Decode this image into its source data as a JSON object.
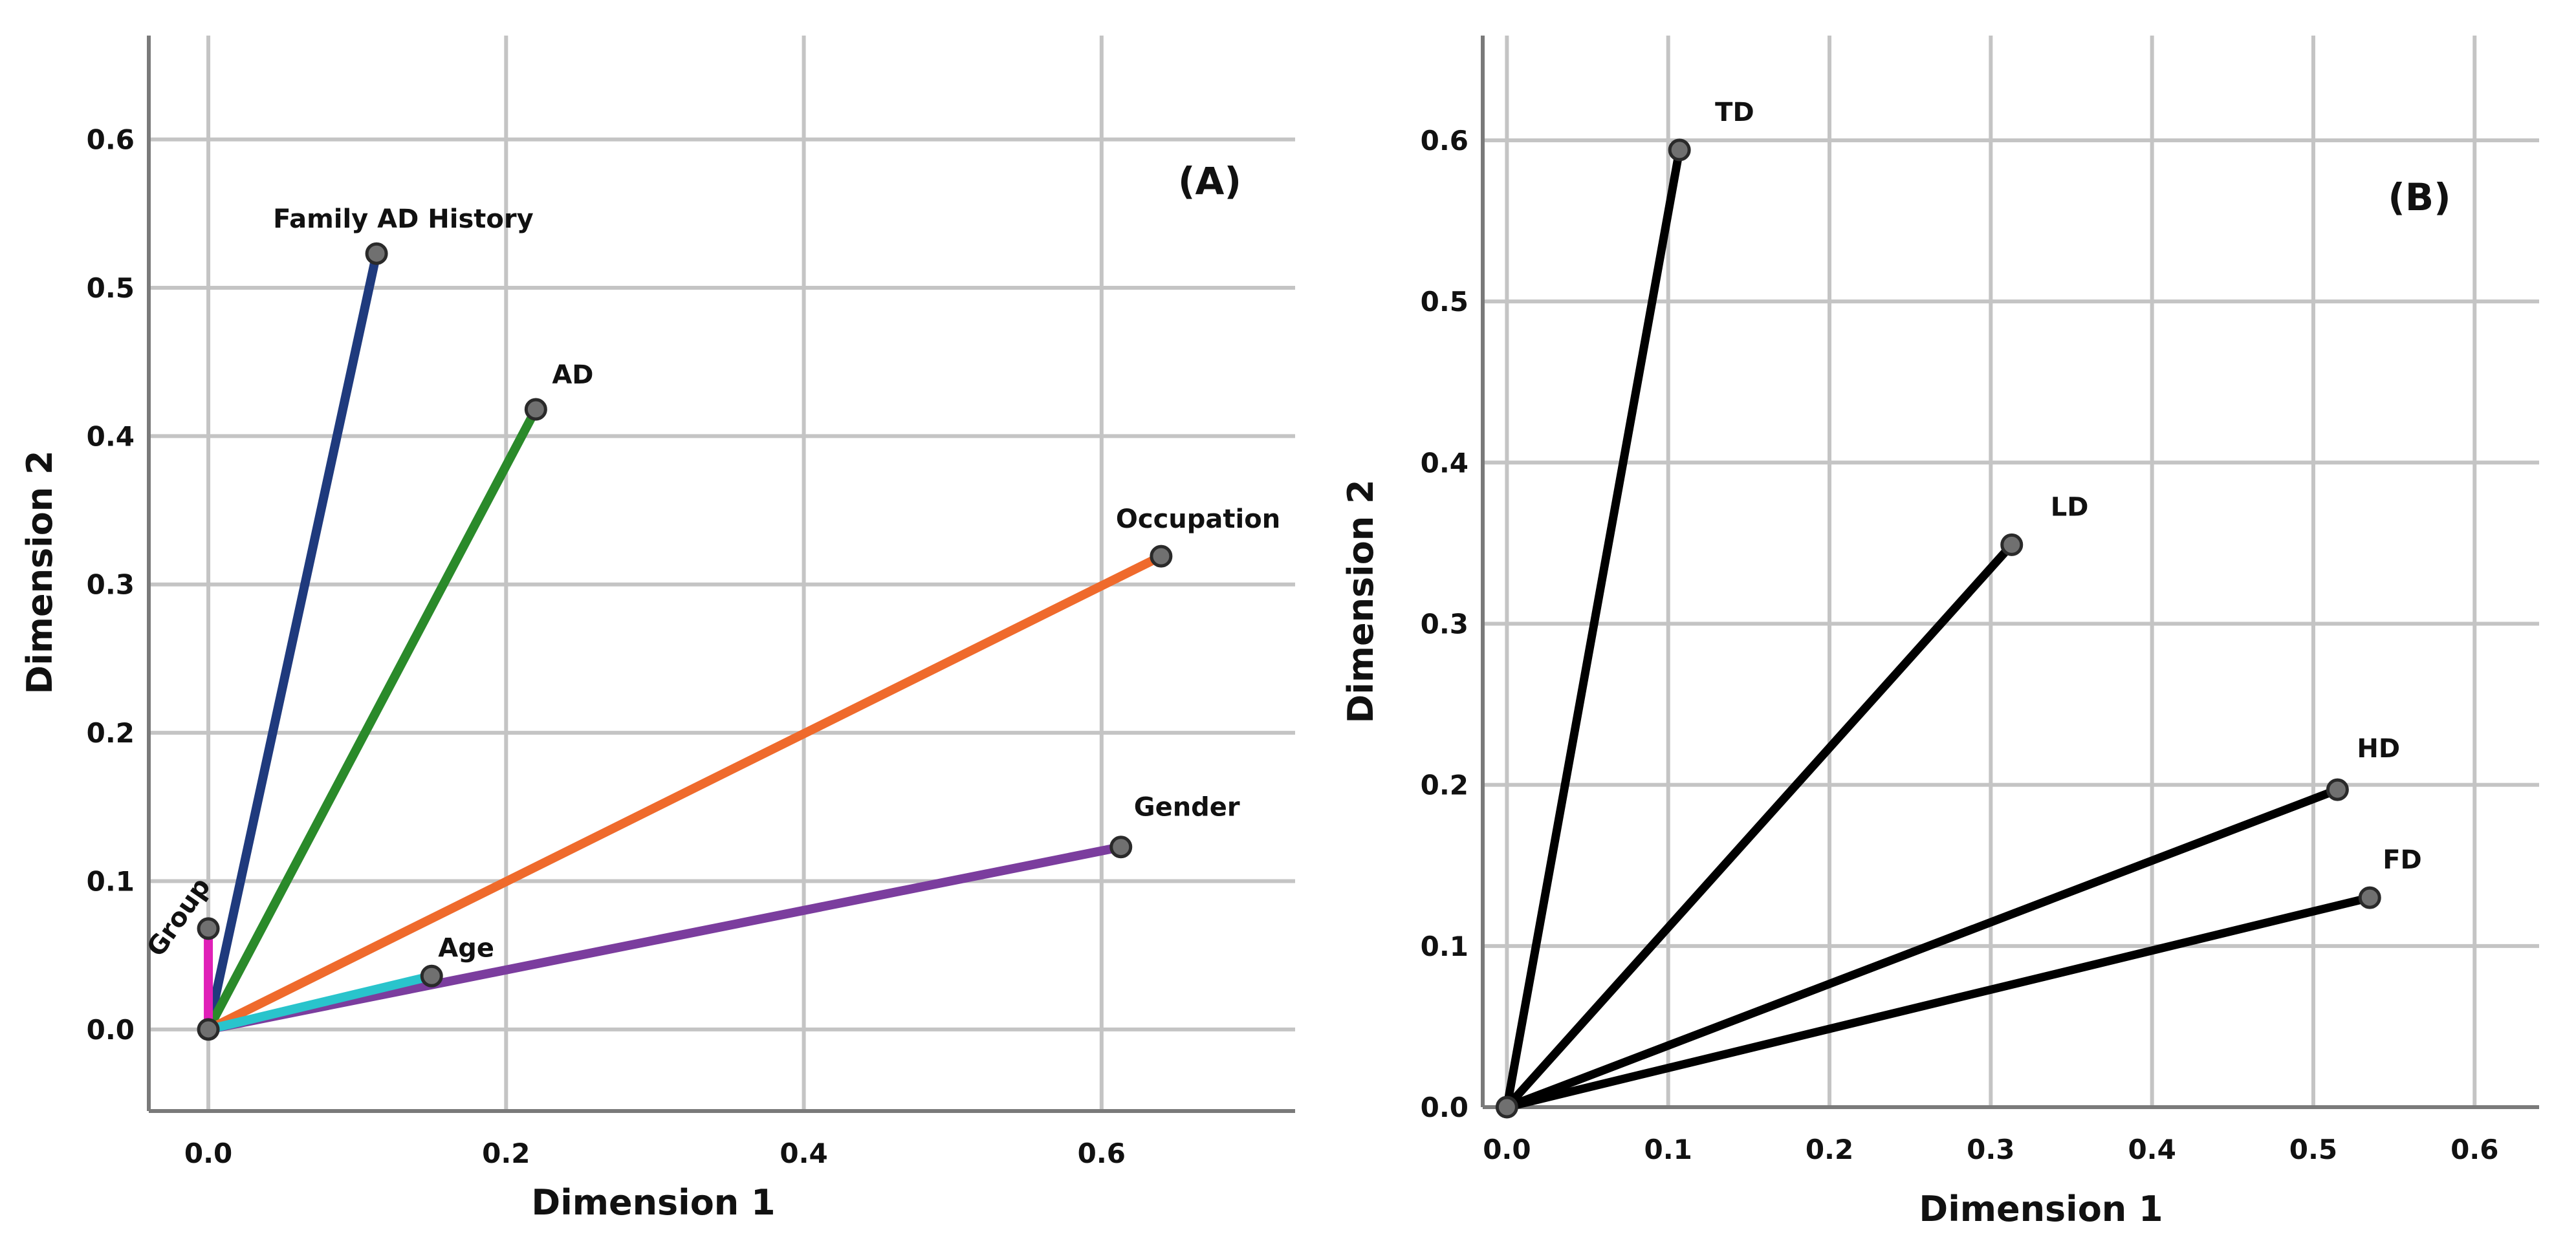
{
  "chart_data": [
    {
      "type": "line",
      "title": "",
      "panel_label": "(A)",
      "xlabel": "Dimension 1",
      "ylabel": "Dimension 2",
      "xlim": [
        -0.04,
        0.73
      ],
      "ylim": [
        -0.055,
        0.67
      ],
      "xticks": [
        0.0,
        0.2,
        0.4,
        0.6
      ],
      "xtick_labels": [
        "0.0",
        "0.2",
        "0.4",
        "0.6"
      ],
      "yticks": [
        0.0,
        0.1,
        0.2,
        0.3,
        0.4,
        0.5,
        0.6
      ],
      "ytick_labels": [
        "0.0",
        "0.1",
        "0.2",
        "0.3",
        "0.4",
        "0.5",
        "0.6"
      ],
      "grid": true,
      "series": [
        {
          "name": "Family AD History",
          "x": [
            0,
            0.113
          ],
          "y": [
            0,
            0.523
          ],
          "color": "#1f3a7d"
        },
        {
          "name": "AD",
          "x": [
            0,
            0.22
          ],
          "y": [
            0,
            0.418
          ],
          "color": "#2a8a2a"
        },
        {
          "name": "Occupation",
          "x": [
            0,
            0.64
          ],
          "y": [
            0,
            0.319
          ],
          "color": "#ef6a2c"
        },
        {
          "name": "Gender",
          "x": [
            0,
            0.613
          ],
          "y": [
            0,
            0.123
          ],
          "color": "#7b3d9e"
        },
        {
          "name": "Age",
          "x": [
            0,
            0.15
          ],
          "y": [
            0,
            0.036
          ],
          "color": "#29c4cc"
        },
        {
          "name": "Group",
          "x": [
            0,
            0.0
          ],
          "y": [
            0,
            0.068
          ],
          "color": "#e020b8"
        }
      ]
    },
    {
      "type": "line",
      "title": "",
      "panel_label": "(B)",
      "xlabel": "Dimension 1",
      "ylabel": "Dimension 2",
      "xlim": [
        -0.015,
        0.64
      ],
      "ylim": [
        0.0,
        0.665
      ],
      "xticks": [
        0.0,
        0.1,
        0.2,
        0.3,
        0.4,
        0.5,
        0.6
      ],
      "xtick_labels": [
        "0.0",
        "0.1",
        "0.2",
        "0.3",
        "0.4",
        "0.5",
        "0.6"
      ],
      "yticks": [
        0.0,
        0.1,
        0.2,
        0.3,
        0.4,
        0.5,
        0.6
      ],
      "ytick_labels": [
        "0.0",
        "0.1",
        "0.2",
        "0.3",
        "0.4",
        "0.5",
        "0.6"
      ],
      "grid": true,
      "series": [
        {
          "name": "TD",
          "x": [
            0,
            0.107
          ],
          "y": [
            0,
            0.594
          ],
          "color": "#000000"
        },
        {
          "name": "LD",
          "x": [
            0,
            0.313
          ],
          "y": [
            0,
            0.349
          ],
          "color": "#000000"
        },
        {
          "name": "HD",
          "x": [
            0,
            0.515
          ],
          "y": [
            0,
            0.197
          ],
          "color": "#000000"
        },
        {
          "name": "FD",
          "x": [
            0,
            0.535
          ],
          "y": [
            0,
            0.13
          ],
          "color": "#000000"
        }
      ]
    }
  ]
}
